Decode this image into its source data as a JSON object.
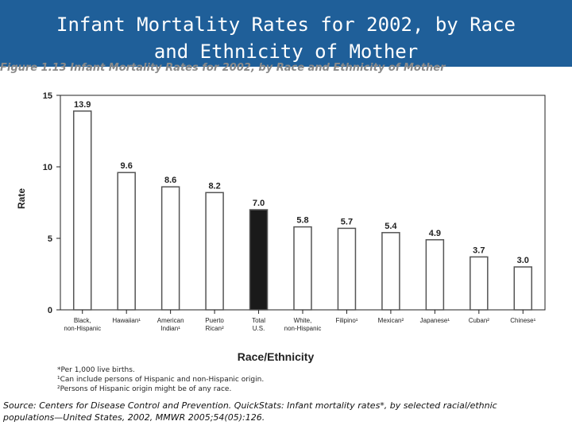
{
  "slide": {
    "title_line1": "Infant Mortality Rates for 2002, by Race",
    "title_line2": "and Ethnicity of Mother",
    "figure_caption": "Figure 1.13 Infant Mortality Rates for 2002, by Race and Ethnicity of Mother"
  },
  "chart_data": {
    "type": "bar",
    "title": "",
    "xlabel": "Race/Ethnicity",
    "ylabel": "Rate",
    "ylim": [
      0,
      15
    ],
    "yticks": [
      0,
      5,
      10,
      15
    ],
    "grid": false,
    "categories": [
      "Black, non-Hispanic",
      "Hawaiian¹",
      "American Indian¹",
      "Puerto Rican²",
      "Total U.S.",
      "White, non-Hispanic",
      "Filipino¹",
      "Mexican²",
      "Japanese¹",
      "Cuban²",
      "Chinese¹"
    ],
    "values": [
      13.9,
      9.6,
      8.6,
      8.2,
      7.0,
      5.8,
      5.7,
      5.4,
      4.9,
      3.7,
      3.0
    ],
    "value_labels": [
      "13.9",
      "9.6",
      "8.6",
      "8.2",
      "7.0",
      "5.8",
      "5.7",
      "5.4",
      "4.9",
      "3.7",
      "3.0"
    ],
    "highlight_index": 4,
    "colors": {
      "bar": "#ffffff",
      "bar_stroke": "#555555",
      "highlight": "#1a1a1a",
      "axis": "#222222"
    }
  },
  "footnotes": [
    "*Per 1,000 live births.",
    "¹Can include persons of Hispanic and non-Hispanic origin.",
    "²Persons of Hispanic origin might be of any race."
  ],
  "source": {
    "line1": "Source: Centers for Disease Control and Prevention. QuickStats: Infant mortality rates*, by selected racial/ethnic",
    "line2": "populations—United States, 2002, MMWR 2005;54(05):126."
  },
  "colors": {
    "title_bar": "#1f5f99",
    "title_text": "#ffffff"
  }
}
